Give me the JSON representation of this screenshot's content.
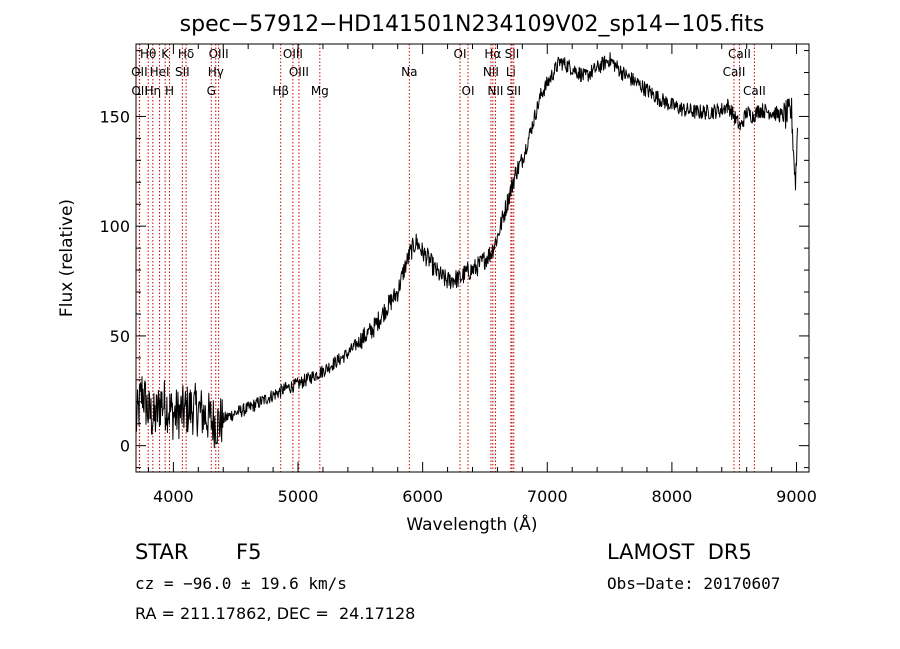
{
  "chart_data": {
    "type": "line",
    "title": "spec−57912−HD141501N234109V02_sp14−105.fits",
    "xlabel": "Wavelength (Å)",
    "ylabel": "Flux (relative)",
    "xlim": [
      3700,
      9100
    ],
    "ylim": [
      -12,
      183
    ],
    "x_ticks": [
      4000,
      5000,
      6000,
      7000,
      8000,
      9000
    ],
    "y_ticks": [
      0,
      50,
      100,
      150
    ],
    "grid": false,
    "line_color": "#000000",
    "marker_color": "#cc0000",
    "lines": [
      {
        "label": "Hθ",
        "x": 3798,
        "row": 0
      },
      {
        "label": "K",
        "x": 3934,
        "row": 0
      },
      {
        "label": "Hδ",
        "x": 4102,
        "row": 0
      },
      {
        "label": "OIII",
        "x": 4363,
        "row": 0
      },
      {
        "label": "OIII",
        "x": 4959,
        "row": 0
      },
      {
        "label": "OI",
        "x": 6300,
        "row": 0
      },
      {
        "label": "Hα",
        "x": 6563,
        "row": 0
      },
      {
        "label": "SII",
        "x": 6717,
        "row": 0
      },
      {
        "label": "CaII",
        "x": 8542,
        "row": 0
      },
      {
        "label": "OII",
        "x": 3727,
        "row": 1
      },
      {
        "label": "HeI",
        "x": 3889,
        "row": 1
      },
      {
        "label": "SII",
        "x": 4072,
        "row": 1
      },
      {
        "label": "Hγ",
        "x": 4340,
        "row": 1
      },
      {
        "label": "OIII",
        "x": 5007,
        "row": 1
      },
      {
        "label": "Na",
        "x": 5893,
        "row": 1
      },
      {
        "label": "NII",
        "x": 6548,
        "row": 1
      },
      {
        "label": "Li",
        "x": 6708,
        "row": 1
      },
      {
        "label": "CaII",
        "x": 8498,
        "row": 1
      },
      {
        "label": "OII",
        "x": 3729,
        "row": 2
      },
      {
        "label": "Hη",
        "x": 3835,
        "row": 2
      },
      {
        "label": "H",
        "x": 3969,
        "row": 2
      },
      {
        "label": "G",
        "x": 4304,
        "row": 2
      },
      {
        "label": "Hβ",
        "x": 4861,
        "row": 2
      },
      {
        "label": "Mg",
        "x": 5175,
        "row": 2
      },
      {
        "label": "OI",
        "x": 6364,
        "row": 2
      },
      {
        "label": "NII",
        "x": 6584,
        "row": 2
      },
      {
        "label": "SII",
        "x": 6731,
        "row": 2
      },
      {
        "label": "CaII",
        "x": 8662,
        "row": 2
      }
    ],
    "spectrum_anchors": [
      [
        3700,
        10
      ],
      [
        3750,
        25
      ],
      [
        3800,
        15
      ],
      [
        3850,
        12
      ],
      [
        3900,
        20
      ],
      [
        3950,
        18
      ],
      [
        4000,
        14
      ],
      [
        4050,
        15
      ],
      [
        4100,
        16
      ],
      [
        4150,
        17
      ],
      [
        4200,
        16
      ],
      [
        4250,
        14
      ],
      [
        4300,
        12
      ],
      [
        4350,
        10
      ],
      [
        4400,
        12
      ],
      [
        4500,
        15
      ],
      [
        4600,
        17
      ],
      [
        4700,
        20
      ],
      [
        4800,
        23
      ],
      [
        4900,
        26
      ],
      [
        5000,
        28
      ],
      [
        5100,
        31
      ],
      [
        5200,
        34
      ],
      [
        5300,
        38
      ],
      [
        5400,
        42
      ],
      [
        5500,
        48
      ],
      [
        5600,
        53
      ],
      [
        5700,
        62
      ],
      [
        5800,
        70
      ],
      [
        5850,
        80
      ],
      [
        5900,
        88
      ],
      [
        5950,
        93
      ],
      [
        6000,
        88
      ],
      [
        6050,
        85
      ],
      [
        6100,
        80
      ],
      [
        6150,
        77
      ],
      [
        6200,
        75
      ],
      [
        6250,
        76
      ],
      [
        6300,
        76
      ],
      [
        6350,
        79
      ],
      [
        6400,
        80
      ],
      [
        6450,
        82
      ],
      [
        6500,
        85
      ],
      [
        6550,
        88
      ],
      [
        6600,
        95
      ],
      [
        6650,
        105
      ],
      [
        6700,
        115
      ],
      [
        6750,
        125
      ],
      [
        6800,
        130
      ],
      [
        6850,
        140
      ],
      [
        6900,
        150
      ],
      [
        6950,
        160
      ],
      [
        7000,
        165
      ],
      [
        7050,
        170
      ],
      [
        7100,
        175
      ],
      [
        7200,
        172
      ],
      [
        7300,
        168
      ],
      [
        7400,
        172
      ],
      [
        7500,
        176
      ],
      [
        7600,
        170
      ],
      [
        7700,
        166
      ],
      [
        7800,
        162
      ],
      [
        7900,
        158
      ],
      [
        8000,
        155
      ],
      [
        8100,
        153
      ],
      [
        8200,
        152
      ],
      [
        8300,
        152
      ],
      [
        8400,
        153
      ],
      [
        8450,
        155
      ],
      [
        8500,
        150
      ],
      [
        8550,
        145
      ],
      [
        8600,
        152
      ],
      [
        8650,
        150
      ],
      [
        8700,
        153
      ],
      [
        8800,
        152
      ],
      [
        8900,
        150
      ],
      [
        8960,
        152
      ],
      [
        8990,
        120
      ],
      [
        9000,
        130
      ],
      [
        9010,
        150
      ]
    ]
  },
  "info": {
    "object_class": "STAR",
    "subclass": "F5",
    "survey": "LAMOST  DR5",
    "cz": "cz = −96.0 ± 19.6 km/s",
    "obs_date": "Obs−Date: 20170607",
    "coords": "RA = 211.17862, DEC =  24.17128"
  }
}
